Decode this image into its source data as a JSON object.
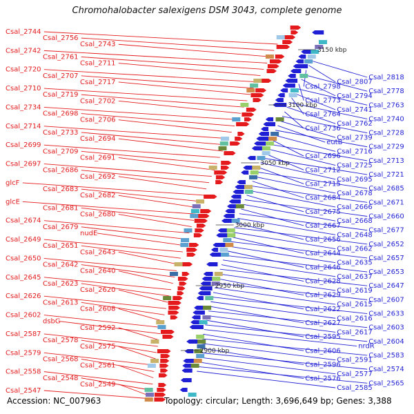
{
  "title": "Chromohalobacter salexigens DSM 3043, complete genome",
  "footer": {
    "accession": "Accession: NC_007963",
    "summary": "Topology: circular; Length: 3,696,649 bp; Genes: 3,388"
  },
  "colors": {
    "forward": "#e41a1c",
    "reverse": "#1f1fd6",
    "backbone": "#999999",
    "tick": "#2a8a2a"
  },
  "kbp_labels": [
    "3150 kbp",
    "3100 kbp",
    "3050 kbp",
    "3000 kbp",
    "2950 kbp",
    "2900 kbp"
  ],
  "left_labels": [
    "Csal_2744",
    "Csal_2756",
    "Csal_2743",
    "Csal_2742",
    "Csal_2761",
    "Csal_2711",
    "Csal_2720",
    "Csal_2707",
    "Csal_2717",
    "Csal_2710",
    "Csal_2719",
    "Csal_2702",
    "Csal_2734",
    "Csal_2698",
    "Csal_2706",
    "Csal_2714",
    "Csal_2733",
    "Csal_2694",
    "Csal_2699",
    "Csal_2709",
    "Csal_2691",
    "Csal_2697",
    "Csal_2686",
    "Csal_2692",
    "glcF",
    "Csal_2683",
    "Csal_2682",
    "glcE",
    "Csal_2681",
    "Csal_2680",
    "Csal_2674",
    "Csal_2679",
    "nudE",
    "Csal_2649",
    "Csal_2651",
    "Csal_2643",
    "Csal_2650",
    "Csal_2642",
    "Csal_2640",
    "Csal_2645",
    "Csal_2623",
    "Csal_2620",
    "Csal_2626",
    "Csal_2613",
    "Csal_2608",
    "Csal_2602",
    "dsbG",
    "Csal_2592",
    "Csal_2587",
    "Csal_2578",
    "Csal_2575",
    "Csal_2579",
    "Csal_2568",
    "Csal_2561",
    "Csal_2558",
    "Csal_2548",
    "Csal_2549",
    "Csal_2547"
  ],
  "right_labels": [
    "Csal_2818",
    "Csal_2807",
    "Csal_2798",
    "Csal_2778",
    "Csal_2794",
    "Csal_2773",
    "Csal_2763",
    "Csal_2741",
    "Csal_2764",
    "Csal_2740",
    "Csal_2762",
    "Csal_2736",
    "Csal_2728",
    "Csal_2739",
    "eutB",
    "Csal_2729",
    "Csal_2716",
    "Csal_2696",
    "Csal_2713",
    "Csal_2725",
    "Csal_2712",
    "Csal_2721",
    "Csal_2695",
    "Csal_2715",
    "Csal_2685",
    "Csal_2678",
    "Csal_2684",
    "Csal_2671",
    "Csal_2666",
    "Csal_2675",
    "Csal_2660",
    "Csal_2668",
    "Csal_2667",
    "Csal_2677",
    "Csal_2648",
    "Csal_2656",
    "Csal_2652",
    "Csal_2662",
    "Csal_2644",
    "Csal_2657",
    "Csal_2635",
    "Csal_2646",
    "Csal_2653",
    "Csal_2637",
    "Csal_2628",
    "Csal_2647",
    "Csal_2619",
    "Csal_2629",
    "Csal_2607",
    "Csal_2615",
    "Csal_2622",
    "Csal_2633",
    "Csal_2616",
    "Csal_2627",
    "Csal_2603",
    "Csal_2617",
    "Csal_2595",
    "Csal_2604",
    "nrdR",
    "Csal_2606",
    "Csal_2583",
    "Csal_2591",
    "Csal_2596",
    "Csal_2574",
    "Csal_2577",
    "Csal_2576",
    "Csal_2565",
    "Csal_2585"
  ]
}
